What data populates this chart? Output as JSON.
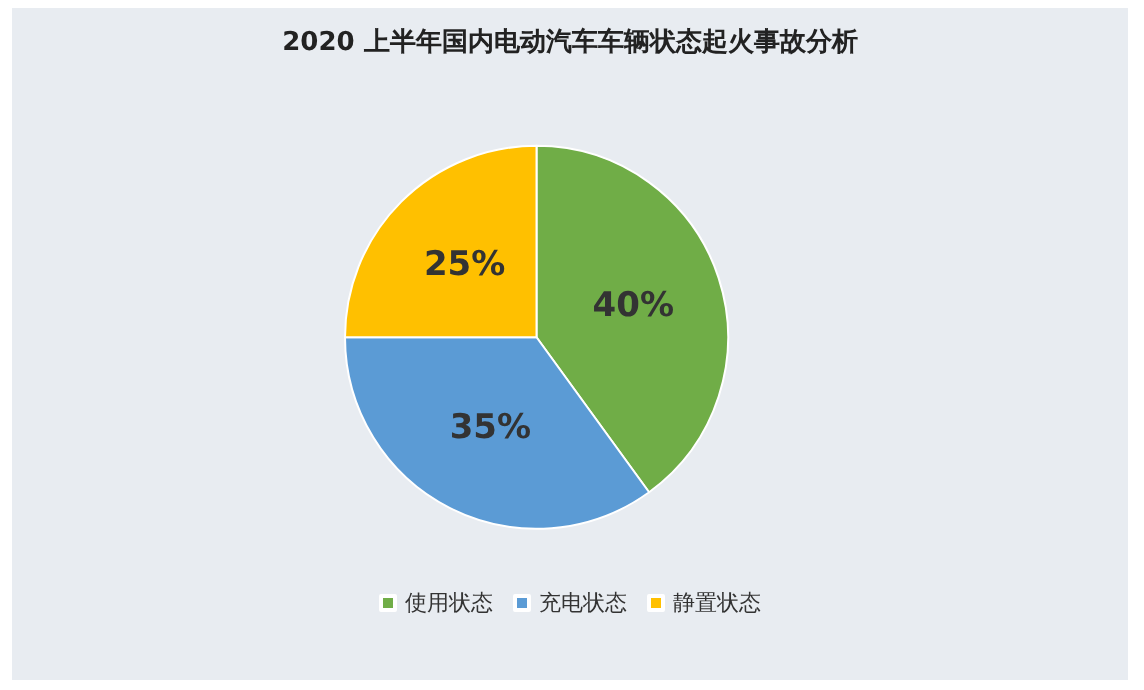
{
  "chart_data": {
    "type": "pie",
    "title": "2020 上半年国内电动汽车车辆状态起火事故分析",
    "categories": [
      "使用状态",
      "充电状态",
      "静置状态"
    ],
    "values": [
      40,
      35,
      25
    ],
    "colors": [
      "#70ad47",
      "#5b9bd5",
      "#ffc000"
    ],
    "value_labels": [
      "40%",
      "35%",
      "25%"
    ],
    "legend": "bottom"
  }
}
